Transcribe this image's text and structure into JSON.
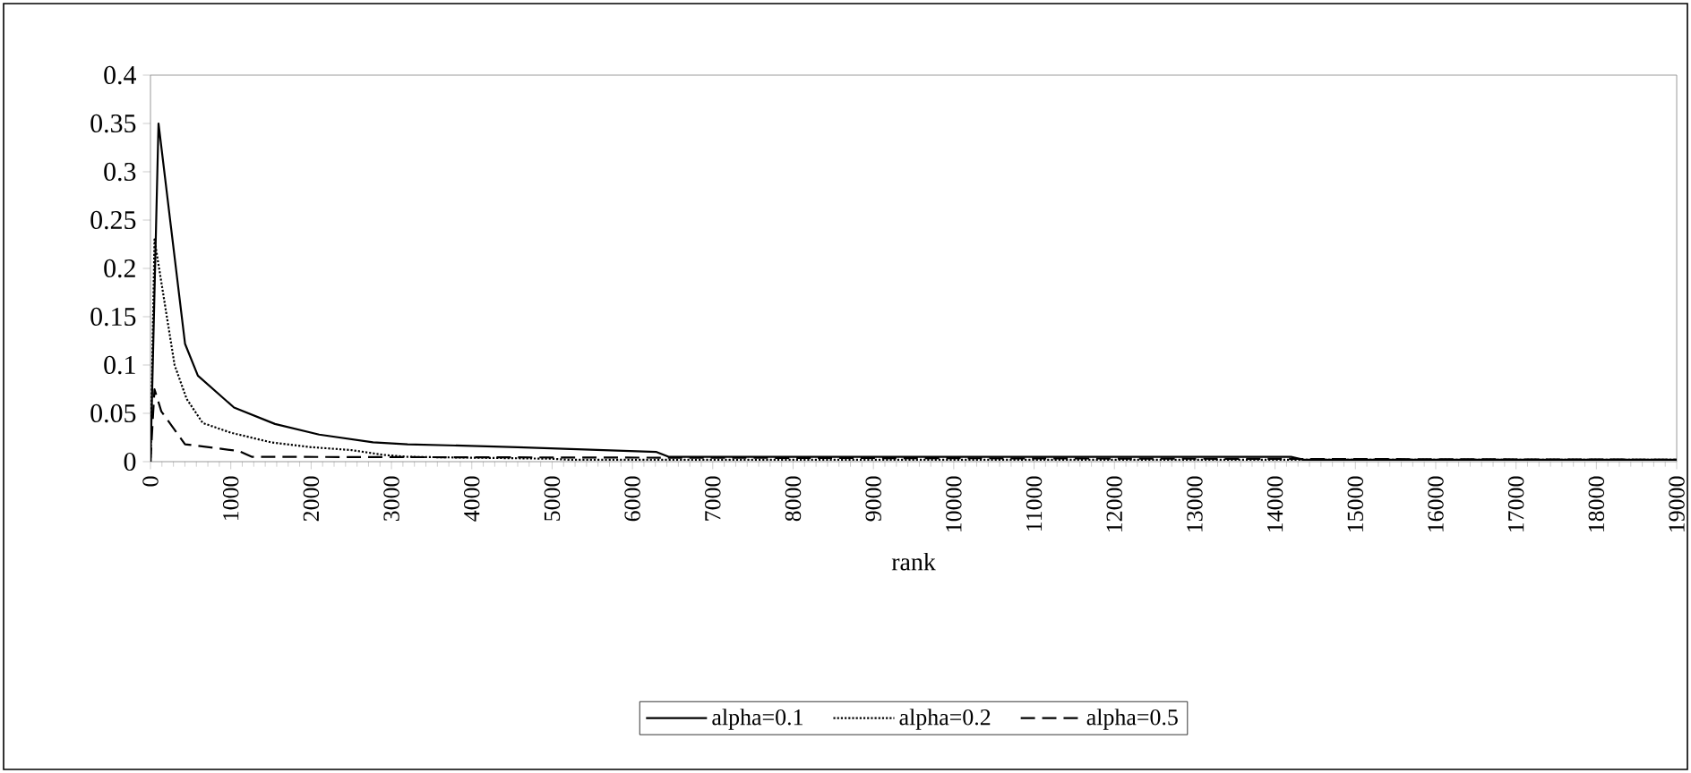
{
  "chart_data": {
    "type": "line",
    "xlabel": "rank",
    "xlim": [
      0,
      19000
    ],
    "xticks": [
      0,
      1000,
      2000,
      3000,
      4000,
      5000,
      6000,
      7000,
      8000,
      9000,
      10000,
      11000,
      12000,
      13000,
      14000,
      15000,
      16000,
      17000,
      18000,
      19000
    ],
    "ylim": [
      0,
      0.4
    ],
    "yticks": [
      0,
      0.05,
      0.1,
      0.15,
      0.2,
      0.25,
      0.3,
      0.35,
      0.4
    ],
    "legend": "bottom",
    "grid": false,
    "marker": "none",
    "series": [
      {
        "name": "alpha=0.1",
        "color": "#000000",
        "line_style": "solid",
        "x": [
          0,
          100,
          430,
          590,
          1040,
          1550,
          2100,
          2770,
          3200,
          4570,
          6300,
          6450,
          14200,
          14350,
          19000
        ],
        "values": [
          0,
          0.35,
          0.122,
          0.089,
          0.056,
          0.039,
          0.028,
          0.02,
          0.018,
          0.015,
          0.01,
          0.005,
          0.005,
          0.002,
          0.002
        ]
      },
      {
        "name": "alpha=0.2",
        "color": "#000000",
        "line_style": "dotted",
        "x": [
          0,
          50,
          300,
          450,
          650,
          1000,
          1500,
          2000,
          2500,
          2900,
          3200,
          5000,
          5200,
          19000
        ],
        "values": [
          0,
          0.23,
          0.1,
          0.065,
          0.04,
          0.03,
          0.02,
          0.015,
          0.012,
          0.007,
          0.005,
          0.003,
          0.002,
          0.002
        ]
      },
      {
        "name": "alpha=0.5",
        "color": "#000000",
        "line_style": "dashed",
        "x": [
          0,
          50,
          135,
          430,
          1100,
          1260,
          19000
        ],
        "values": [
          0,
          0.075,
          0.052,
          0.018,
          0.011,
          0.005,
          0.002
        ]
      }
    ]
  }
}
